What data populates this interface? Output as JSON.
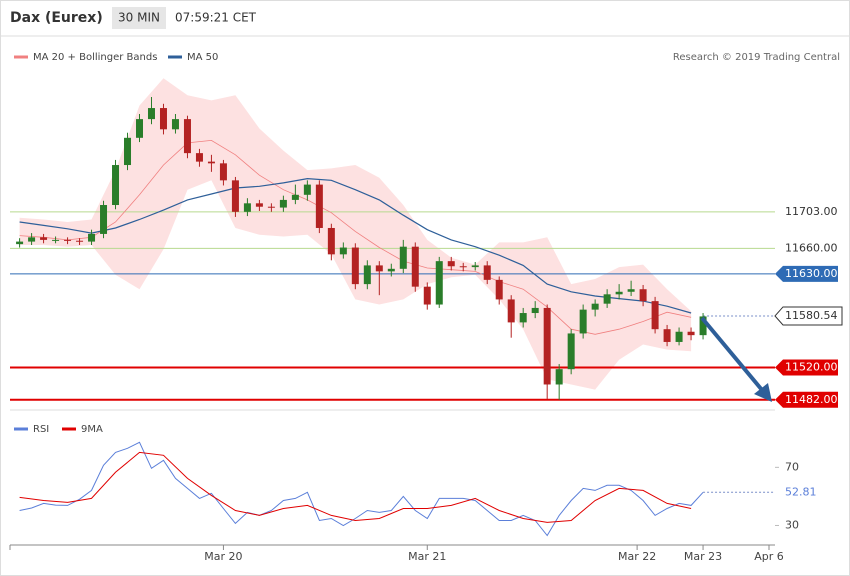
{
  "header": {
    "symbol": "Dax (Eurex)",
    "interval": "30 MIN",
    "time": "07:59:21 CET"
  },
  "chart_data": [
    {
      "type": "candlestick",
      "annotation": "Research © 2019 Trading Central",
      "up_color": "#2a7d2a",
      "down_color": "#b32222",
      "xlim": [
        -0.8,
        63
      ],
      "ylim": [
        11470,
        11905
      ],
      "candles": {
        "open": [
          11665,
          11668,
          11673,
          11670,
          11670,
          11669,
          11668,
          11677,
          11711,
          11758,
          11790,
          11812,
          11825,
          11800,
          11812,
          11772,
          11762,
          11760,
          11740,
          11703,
          11713,
          11709,
          11708,
          11717,
          11723,
          11735,
          11684,
          11653,
          11661,
          11618,
          11640,
          11633,
          11636,
          11662,
          11615,
          11594,
          11645,
          11639,
          11638,
          11640,
          11623,
          11600,
          11573,
          11584,
          11590,
          11500,
          11518,
          11560,
          11588,
          11595,
          11606,
          11609,
          11612,
          11598,
          11565,
          11550,
          11562,
          11558
        ],
        "high": [
          11672,
          11678,
          11677,
          11674,
          11673,
          11672,
          11682,
          11716,
          11764,
          11796,
          11818,
          11838,
          11830,
          11818,
          11816,
          11777,
          11770,
          11764,
          11744,
          11719,
          11717,
          11713,
          11722,
          11735,
          11740,
          11740,
          11689,
          11667,
          11666,
          11646,
          11645,
          11642,
          11670,
          11667,
          11620,
          11650,
          11650,
          11643,
          11644,
          11645,
          11627,
          11605,
          11590,
          11598,
          11594,
          11524,
          11565,
          11594,
          11600,
          11612,
          11618,
          11622,
          11617,
          11603,
          11570,
          11567,
          11567,
          11584
        ],
        "low": [
          11661,
          11664,
          11666,
          11666,
          11665,
          11664,
          11664,
          11672,
          11706,
          11752,
          11785,
          11806,
          11794,
          11795,
          11766,
          11756,
          11750,
          11734,
          11697,
          11698,
          11704,
          11703,
          11703,
          11712,
          11716,
          11678,
          11646,
          11648,
          11612,
          11612,
          11605,
          11627,
          11631,
          11609,
          11588,
          11590,
          11634,
          11633,
          11634,
          11618,
          11594,
          11555,
          11567,
          11578,
          11483,
          11482,
          11512,
          11554,
          11580,
          11590,
          11600,
          11604,
          11592,
          11560,
          11545,
          11546,
          11552,
          11553
        ],
        "close": [
          11668,
          11673,
          11670,
          11670,
          11669,
          11668,
          11677,
          11711,
          11758,
          11790,
          11812,
          11825,
          11800,
          11812,
          11772,
          11762,
          11760,
          11740,
          11703,
          11713,
          11709,
          11708,
          11717,
          11723,
          11735,
          11684,
          11653,
          11661,
          11618,
          11640,
          11633,
          11636,
          11662,
          11615,
          11594,
          11645,
          11639,
          11638,
          11640,
          11623,
          11600,
          11573,
          11584,
          11590,
          11500,
          11518,
          11560,
          11588,
          11595,
          11606,
          11609,
          11612,
          11598,
          11565,
          11550,
          11562,
          11558,
          11580
        ]
      },
      "series": [
        {
          "name": "MA 20 + Bollinger Bands",
          "color": "#f08080",
          "band_color": "#fde1e1",
          "x": [
            0,
            2,
            4,
            6,
            8,
            10,
            12,
            14,
            16,
            18,
            20,
            22,
            24,
            26,
            28,
            30,
            32,
            34,
            36,
            38,
            40,
            42,
            44,
            46,
            48,
            50,
            52,
            54,
            56
          ],
          "values": [
            11675,
            11673,
            11670,
            11673,
            11691,
            11723,
            11758,
            11784,
            11787,
            11770,
            11746,
            11729,
            11717,
            11702,
            11680,
            11661,
            11645,
            11637,
            11635,
            11633,
            11621,
            11612,
            11591,
            11565,
            11559,
            11565,
            11574,
            11585,
            11579
          ],
          "upper": [
            11696,
            11694,
            11691,
            11694,
            11752,
            11828,
            11860,
            11840,
            11834,
            11840,
            11801,
            11775,
            11752,
            11754,
            11758,
            11743,
            11711,
            11670,
            11649,
            11641,
            11667,
            11667,
            11673,
            11618,
            11624,
            11638,
            11641,
            11612,
            11586
          ],
          "lower": [
            11664,
            11664,
            11662,
            11664,
            11629,
            11612,
            11659,
            11729,
            11740,
            11684,
            11676,
            11674,
            11676,
            11653,
            11600,
            11594,
            11600,
            11618,
            11626,
            11629,
            11600,
            11565,
            11506,
            11500,
            11494,
            11529,
            11547,
            11541,
            11539
          ]
        },
        {
          "name": "MA 50",
          "color": "#2e5f99",
          "x": [
            0,
            2,
            4,
            6,
            8,
            10,
            12,
            14,
            16,
            18,
            20,
            22,
            24,
            26,
            28,
            30,
            32,
            34,
            36,
            38,
            40,
            42,
            44,
            46,
            48,
            50,
            52,
            54,
            56
          ],
          "values": [
            11691,
            11687,
            11683,
            11678,
            11684,
            11694,
            11705,
            11717,
            11724,
            11731,
            11733,
            11737,
            11742,
            11740,
            11729,
            11717,
            11699,
            11682,
            11670,
            11662,
            11652,
            11640,
            11618,
            11609,
            11604,
            11601,
            11598,
            11592,
            11584
          ]
        }
      ],
      "levels": [
        {
          "value": 11703,
          "label": "11703.00",
          "color": "#b7d98f",
          "style": "plain"
        },
        {
          "value": 11660,
          "label": "11660.00",
          "color": "#b7d98f",
          "style": "plain"
        },
        {
          "value": 11630,
          "label": "11630.00",
          "color": "#2e6bb5",
          "style": "box"
        },
        {
          "value": 11580.54,
          "color": "#333333",
          "style": "current"
        },
        {
          "value": 11520,
          "label": "11520.00",
          "color": "#e00000",
          "style": "box"
        },
        {
          "value": 11482,
          "label": "11482.00",
          "color": "#e00000",
          "style": "box"
        }
      ]
    },
    {
      "type": "line",
      "xlim": [
        -0.8,
        63
      ],
      "ylim": [
        20,
        106
      ],
      "yticks": [
        30,
        70
      ],
      "xticks": [
        {
          "value": 17,
          "label": "Mar 20"
        },
        {
          "value": 34,
          "label": "Mar 21"
        },
        {
          "value": 51.5,
          "label": "Mar 22"
        },
        {
          "value": 57,
          "label": "Mar 23"
        },
        {
          "value": 62.5,
          "label": "Apr 6"
        }
      ],
      "series": [
        {
          "name": "RSI",
          "color": "#5b7fd9",
          "x": [
            0,
            1,
            2,
            3,
            4,
            5,
            6,
            7,
            8,
            9,
            10,
            11,
            12,
            13,
            14,
            15,
            16,
            17,
            18,
            19,
            20,
            21,
            22,
            23,
            24,
            25,
            26,
            27,
            28,
            29,
            30,
            31,
            32,
            33,
            34,
            35,
            36,
            37,
            38,
            39,
            40,
            41,
            42,
            43,
            44,
            45,
            46,
            47,
            48,
            49,
            50,
            51,
            52,
            53,
            54,
            55,
            56,
            57
          ],
          "values": [
            40.3,
            42,
            45.2,
            44,
            43.8,
            48,
            54.1,
            71.4,
            80.3,
            83.1,
            87.2,
            69.3,
            74.8,
            62.4,
            55.5,
            48.6,
            52.1,
            41.7,
            31.4,
            39,
            36.9,
            40.3,
            47.2,
            48.6,
            52.8,
            33.4,
            34.8,
            30,
            34.8,
            40.3,
            39,
            40.3,
            50,
            40.3,
            34.8,
            48.6,
            48.6,
            48.6,
            47.2,
            40.3,
            33.4,
            33.4,
            36.9,
            33.4,
            23.1,
            36.9,
            47.2,
            55.5,
            54.1,
            57.6,
            57.6,
            54.1,
            47.2,
            36.9,
            41.7,
            45.2,
            43.8,
            52.81
          ]
        },
        {
          "name": "9MA",
          "color": "#e00000",
          "x": [
            0,
            2,
            4,
            6,
            8,
            10,
            12,
            14,
            16,
            18,
            20,
            22,
            24,
            26,
            28,
            30,
            32,
            34,
            36,
            38,
            40,
            42,
            44,
            46,
            48,
            50,
            52,
            54,
            56
          ],
          "values": [
            49.3,
            47.2,
            45.9,
            48.6,
            66.6,
            80.3,
            78.3,
            62.4,
            50.7,
            40.3,
            36.9,
            41.7,
            43.8,
            36.9,
            33.4,
            34.8,
            41.7,
            41.7,
            43.8,
            48.6,
            40.3,
            34.8,
            32.1,
            33.4,
            47.2,
            55.5,
            54.1,
            45.2,
            41.7
          ]
        }
      ]
    }
  ]
}
